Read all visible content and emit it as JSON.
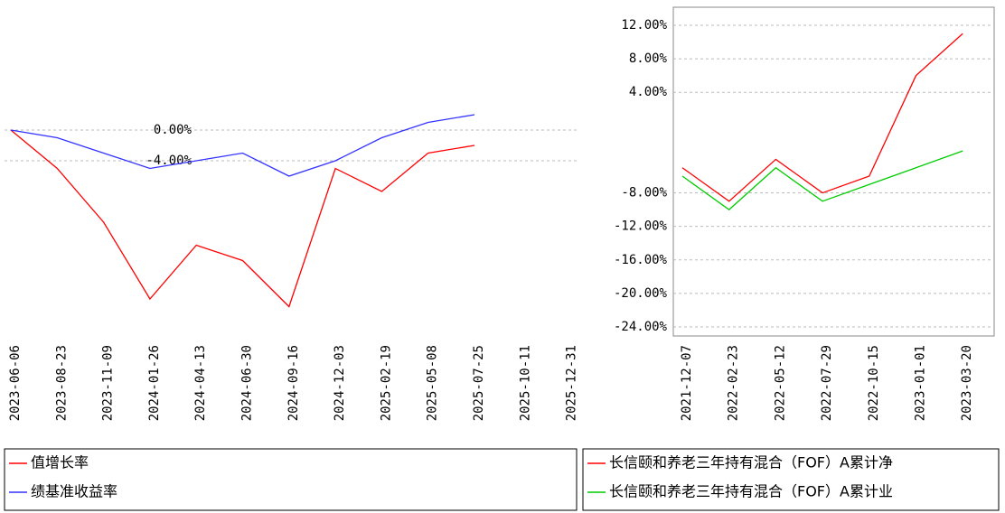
{
  "chart_data": [
    {
      "type": "line",
      "categories": [
        "2023-06-06",
        "2023-08-23",
        "2023-11-09",
        "2024-01-26",
        "2024-04-13",
        "2024-06-30",
        "2024-09-16",
        "2024-12-03",
        "2025-02-19",
        "2025-05-08",
        "2025-07-25",
        "2025-10-11",
        "2025-12-31"
      ],
      "series": [
        {
          "name": "值增长率",
          "color": "#ff0000",
          "values": [
            0,
            -5,
            -12,
            -22,
            -15,
            -17,
            -23,
            -5,
            -8,
            -3,
            -2,
            null,
            null
          ]
        },
        {
          "name": "绩基准收益率",
          "color": "#3333ff",
          "values": [
            0,
            -1,
            -3,
            -5,
            -4,
            -3,
            -6,
            -4,
            -1,
            1,
            2,
            null,
            null
          ]
        }
      ],
      "ylim": [
        -26,
        4
      ],
      "yticks": [
        {
          "value": 0,
          "label": "0.00%"
        },
        {
          "value": -4,
          "label": "-4.00%"
        }
      ],
      "grid": true
    },
    {
      "type": "line",
      "categories": [
        "2021-12-07",
        "2022-02-23",
        "2022-05-12",
        "2022-07-29",
        "2022-10-15",
        "2023-01-01",
        "2023-03-20"
      ],
      "series": [
        {
          "name": "长信颐和养老三年持有混合（FOF）A累计净",
          "color": "#ff0000",
          "values": [
            -5,
            -9,
            -4,
            -8,
            -6,
            6,
            11
          ]
        },
        {
          "name": "长信颐和养老三年持有混合（FOF）A累计业",
          "color": "#00cc00",
          "values": [
            -6,
            -10,
            -5,
            -9,
            -7,
            -5,
            -3
          ]
        }
      ],
      "ylim": [
        -24,
        12
      ],
      "yticks": [
        {
          "value": 12,
          "label": "12.00%"
        },
        {
          "value": 8,
          "label": "8.00%"
        },
        {
          "value": 4,
          "label": "4.00%"
        },
        {
          "value": -8,
          "label": "-8.00%"
        },
        {
          "value": -12,
          "label": "-12.00%"
        },
        {
          "value": -16,
          "label": "-16.00%"
        },
        {
          "value": -20,
          "label": "-20.00%"
        },
        {
          "value": -24,
          "label": "-24.00%"
        }
      ],
      "grid": true
    }
  ]
}
